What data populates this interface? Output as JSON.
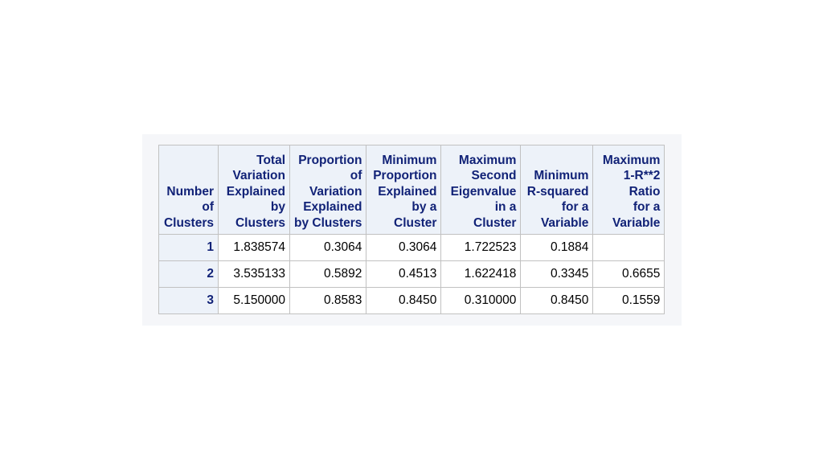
{
  "table": {
    "headers": [
      [
        "Number",
        "of",
        "Clusters"
      ],
      [
        "Total",
        "Variation",
        "Explained",
        "by",
        "Clusters"
      ],
      [
        "Proportion",
        "of",
        "Variation",
        "Explained",
        "by Clusters"
      ],
      [
        "Minimum",
        "Proportion",
        "Explained",
        "by a",
        "Cluster"
      ],
      [
        "Maximum",
        "Second",
        "Eigenvalue",
        "in a",
        "Cluster"
      ],
      [
        "Minimum",
        "R-squared",
        "for a",
        "Variable"
      ],
      [
        "Maximum",
        "1-R**2",
        "Ratio",
        "for a",
        "Variable"
      ]
    ],
    "rows": [
      [
        "1",
        "1.838574",
        "0.3064",
        "0.3064",
        "1.722523",
        "0.1884",
        ""
      ],
      [
        "2",
        "3.535133",
        "0.5892",
        "0.4513",
        "1.622418",
        "0.3345",
        "0.6655"
      ],
      [
        "3",
        "5.150000",
        "0.8583",
        "0.8450",
        "0.310000",
        "0.8450",
        "0.1559"
      ]
    ]
  },
  "colors": {
    "header_background": "#edf2f9",
    "header_text": "#112277",
    "grid_lines": "#c1c1c1",
    "panel_background": "#f5f6f9"
  }
}
